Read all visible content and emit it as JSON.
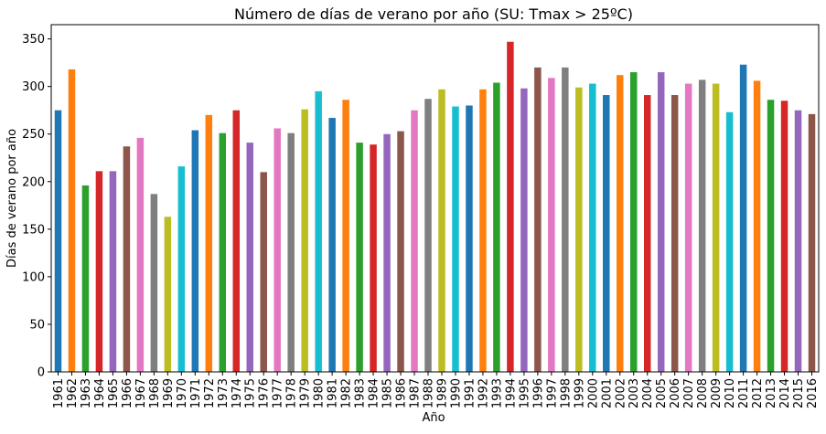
{
  "chart_data": {
    "type": "bar",
    "title": "Número de días de verano por año (SU: Tmax > 25ºC)",
    "xlabel": "Año",
    "ylabel": "Días de verano por año",
    "ylim": [
      0,
      365
    ],
    "yticks": [
      0,
      50,
      100,
      150,
      200,
      250,
      300,
      350
    ],
    "grid": false,
    "legend": false,
    "categories": [
      "1961",
      "1962",
      "1963",
      "1964",
      "1965",
      "1966",
      "1967",
      "1968",
      "1969",
      "1970",
      "1971",
      "1972",
      "1973",
      "1974",
      "1975",
      "1976",
      "1977",
      "1978",
      "1979",
      "1980",
      "1981",
      "1982",
      "1983",
      "1984",
      "1985",
      "1986",
      "1987",
      "1988",
      "1989",
      "1990",
      "1991",
      "1992",
      "1993",
      "1994",
      "1995",
      "1996",
      "1997",
      "1998",
      "1999",
      "2000",
      "2001",
      "2002",
      "2003",
      "2004",
      "2005",
      "2006",
      "2007",
      "2008",
      "2009",
      "2010",
      "2011",
      "2012",
      "2013",
      "2014",
      "2015",
      "2016"
    ],
    "values": [
      275,
      318,
      196,
      211,
      211,
      237,
      246,
      187,
      163,
      216,
      254,
      270,
      251,
      275,
      241,
      210,
      256,
      251,
      276,
      295,
      267,
      286,
      241,
      239,
      250,
      253,
      275,
      287,
      297,
      279,
      280,
      297,
      304,
      347,
      298,
      320,
      309,
      320,
      299,
      303,
      291,
      312,
      315,
      291,
      315,
      291,
      303,
      307,
      303,
      273,
      323,
      306,
      286,
      285,
      275,
      271
    ],
    "palette": [
      "#1f77b4",
      "#ff7f0e",
      "#2ca02c",
      "#d62728",
      "#9467bd",
      "#8c564b",
      "#e377c2",
      "#7f7f7f",
      "#bcbd22",
      "#17becf"
    ]
  }
}
